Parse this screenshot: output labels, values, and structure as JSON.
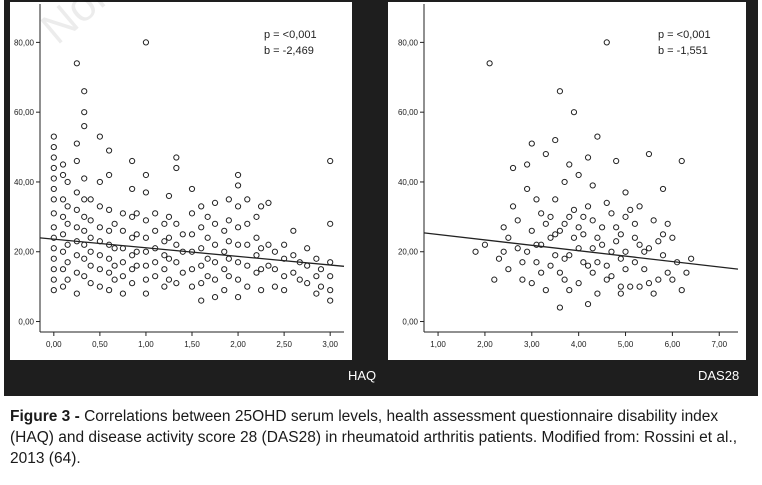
{
  "caption": {
    "label": "Figure 3 -",
    "text": "Correlations between 25OHD serum levels, health assessment questionnaire disability index (HAQ) and disease activity score 28 (DAS28) in rheumatoid arthritis patients. Modified from: Rossini et al., 2013 (64)."
  },
  "watermark": "Non",
  "colors": {
    "panel_bg": "#1e1e1e",
    "plot_bg": "#ffffff",
    "ink": "#222222"
  },
  "chart_data": [
    {
      "type": "scatter",
      "title": "",
      "xlabel": "HAQ",
      "ylabel": "",
      "xlim": [
        -0.15,
        3.15
      ],
      "ylim": [
        -3,
        91
      ],
      "xticks": [
        0.0,
        0.5,
        1.0,
        1.5,
        2.0,
        2.5,
        3.0
      ],
      "xtick_labels": [
        "0,00",
        "0,50",
        "1,00",
        "1,50",
        "2,00",
        "2,50",
        "3,00"
      ],
      "yticks": [
        0,
        20,
        40,
        60,
        80
      ],
      "ytick_labels": [
        "0,00",
        "20,00",
        "40,00",
        "60,00",
        "80,00"
      ],
      "annotation": {
        "p": "p = <0,001",
        "b": "b =  -2,469"
      },
      "regression": {
        "intercept": 23.6,
        "slope": -2.469
      },
      "points": [
        [
          0.0,
          53
        ],
        [
          0.0,
          50
        ],
        [
          0.0,
          47
        ],
        [
          0.0,
          44
        ],
        [
          0.0,
          41
        ],
        [
          0.0,
          38
        ],
        [
          0.0,
          35
        ],
        [
          0.0,
          31
        ],
        [
          0.0,
          27
        ],
        [
          0.0,
          24
        ],
        [
          0.0,
          21
        ],
        [
          0.0,
          18
        ],
        [
          0.0,
          15
        ],
        [
          0.0,
          12
        ],
        [
          0.0,
          9
        ],
        [
          0.1,
          45
        ],
        [
          0.1,
          42
        ],
        [
          0.1,
          35
        ],
        [
          0.1,
          30
        ],
        [
          0.1,
          25
        ],
        [
          0.1,
          20
        ],
        [
          0.1,
          15
        ],
        [
          0.1,
          10
        ],
        [
          0.15,
          40
        ],
        [
          0.15,
          33
        ],
        [
          0.15,
          28
        ],
        [
          0.15,
          22
        ],
        [
          0.15,
          17
        ],
        [
          0.15,
          12
        ],
        [
          0.25,
          74
        ],
        [
          0.25,
          51
        ],
        [
          0.25,
          46
        ],
        [
          0.25,
          37
        ],
        [
          0.25,
          32
        ],
        [
          0.25,
          27
        ],
        [
          0.25,
          23
        ],
        [
          0.25,
          19
        ],
        [
          0.25,
          14
        ],
        [
          0.25,
          8
        ],
        [
          0.33,
          66
        ],
        [
          0.33,
          60
        ],
        [
          0.33,
          56
        ],
        [
          0.33,
          41
        ],
        [
          0.33,
          35
        ],
        [
          0.33,
          30
        ],
        [
          0.33,
          26
        ],
        [
          0.33,
          22
        ],
        [
          0.33,
          18
        ],
        [
          0.33,
          13
        ],
        [
          0.4,
          35
        ],
        [
          0.4,
          29
        ],
        [
          0.4,
          24
        ],
        [
          0.4,
          20
        ],
        [
          0.4,
          16
        ],
        [
          0.4,
          11
        ],
        [
          0.5,
          53
        ],
        [
          0.5,
          40
        ],
        [
          0.5,
          33
        ],
        [
          0.5,
          27
        ],
        [
          0.5,
          23
        ],
        [
          0.5,
          19
        ],
        [
          0.5,
          15
        ],
        [
          0.5,
          10
        ],
        [
          0.6,
          49
        ],
        [
          0.6,
          42
        ],
        [
          0.6,
          32
        ],
        [
          0.6,
          26
        ],
        [
          0.6,
          22
        ],
        [
          0.6,
          18
        ],
        [
          0.6,
          14
        ],
        [
          0.6,
          9
        ],
        [
          0.66,
          28
        ],
        [
          0.66,
          21
        ],
        [
          0.66,
          16
        ],
        [
          0.66,
          12
        ],
        [
          0.75,
          31
        ],
        [
          0.75,
          26
        ],
        [
          0.75,
          21
        ],
        [
          0.75,
          17
        ],
        [
          0.75,
          13
        ],
        [
          0.75,
          8
        ],
        [
          0.85,
          46
        ],
        [
          0.85,
          38
        ],
        [
          0.85,
          30
        ],
        [
          0.85,
          24
        ],
        [
          0.85,
          19
        ],
        [
          0.85,
          15
        ],
        [
          0.85,
          11
        ],
        [
          0.9,
          31
        ],
        [
          0.9,
          25
        ],
        [
          0.9,
          20
        ],
        [
          0.9,
          16
        ],
        [
          1.0,
          80
        ],
        [
          1.0,
          42
        ],
        [
          1.0,
          37
        ],
        [
          1.0,
          29
        ],
        [
          1.0,
          24
        ],
        [
          1.0,
          20
        ],
        [
          1.0,
          16
        ],
        [
          1.0,
          12
        ],
        [
          1.0,
          8
        ],
        [
          1.1,
          31
        ],
        [
          1.1,
          26
        ],
        [
          1.1,
          21
        ],
        [
          1.1,
          17
        ],
        [
          1.1,
          13
        ],
        [
          1.2,
          28
        ],
        [
          1.2,
          23
        ],
        [
          1.2,
          19
        ],
        [
          1.2,
          15
        ],
        [
          1.2,
          10
        ],
        [
          1.25,
          36
        ],
        [
          1.25,
          30
        ],
        [
          1.25,
          24
        ],
        [
          1.25,
          18
        ],
        [
          1.25,
          12
        ],
        [
          1.33,
          47
        ],
        [
          1.33,
          44
        ],
        [
          1.33,
          28
        ],
        [
          1.33,
          22
        ],
        [
          1.33,
          17
        ],
        [
          1.33,
          11
        ],
        [
          1.4,
          25
        ],
        [
          1.4,
          20
        ],
        [
          1.4,
          14
        ],
        [
          1.5,
          38
        ],
        [
          1.5,
          31
        ],
        [
          1.5,
          25
        ],
        [
          1.5,
          20
        ],
        [
          1.5,
          15
        ],
        [
          1.5,
          10
        ],
        [
          1.6,
          33
        ],
        [
          1.6,
          27
        ],
        [
          1.6,
          21
        ],
        [
          1.6,
          16
        ],
        [
          1.6,
          11
        ],
        [
          1.6,
          6
        ],
        [
          1.67,
          30
        ],
        [
          1.67,
          24
        ],
        [
          1.67,
          18
        ],
        [
          1.67,
          13
        ],
        [
          1.75,
          34
        ],
        [
          1.75,
          28
        ],
        [
          1.75,
          22
        ],
        [
          1.75,
          17
        ],
        [
          1.75,
          12
        ],
        [
          1.75,
          7
        ],
        [
          1.85,
          26
        ],
        [
          1.85,
          20
        ],
        [
          1.85,
          15
        ],
        [
          1.85,
          9
        ],
        [
          1.9,
          35
        ],
        [
          1.9,
          29
        ],
        [
          1.9,
          23
        ],
        [
          1.9,
          18
        ],
        [
          1.9,
          13
        ],
        [
          2.0,
          42
        ],
        [
          2.0,
          39
        ],
        [
          2.0,
          33
        ],
        [
          2.0,
          27
        ],
        [
          2.0,
          22
        ],
        [
          2.0,
          17
        ],
        [
          2.0,
          12
        ],
        [
          2.0,
          7
        ],
        [
          2.1,
          35
        ],
        [
          2.1,
          28
        ],
        [
          2.1,
          22
        ],
        [
          2.1,
          16
        ],
        [
          2.1,
          10
        ],
        [
          2.2,
          30
        ],
        [
          2.2,
          24
        ],
        [
          2.2,
          19
        ],
        [
          2.2,
          14
        ],
        [
          2.25,
          33
        ],
        [
          2.25,
          21
        ],
        [
          2.25,
          15
        ],
        [
          2.25,
          9
        ],
        [
          2.33,
          34
        ],
        [
          2.33,
          22
        ],
        [
          2.33,
          16
        ],
        [
          2.4,
          20
        ],
        [
          2.4,
          15
        ],
        [
          2.4,
          10
        ],
        [
          2.5,
          22
        ],
        [
          2.5,
          18
        ],
        [
          2.5,
          13
        ],
        [
          2.5,
          9
        ],
        [
          2.6,
          26
        ],
        [
          2.6,
          19
        ],
        [
          2.6,
          14
        ],
        [
          2.67,
          17
        ],
        [
          2.67,
          12
        ],
        [
          2.75,
          21
        ],
        [
          2.75,
          16
        ],
        [
          2.75,
          11
        ],
        [
          2.85,
          18
        ],
        [
          2.85,
          13
        ],
        [
          2.85,
          8
        ],
        [
          2.9,
          15
        ],
        [
          2.9,
          10
        ],
        [
          3.0,
          46
        ],
        [
          3.0,
          28
        ],
        [
          3.0,
          17
        ],
        [
          3.0,
          13
        ],
        [
          3.0,
          9
        ],
        [
          3.0,
          6
        ]
      ]
    },
    {
      "type": "scatter",
      "title": "",
      "xlabel": "DAS28",
      "ylabel": "",
      "xlim": [
        0.7,
        7.4
      ],
      "ylim": [
        -3,
        91
      ],
      "xticks": [
        1,
        2,
        3,
        4,
        5,
        6,
        7
      ],
      "xtick_labels": [
        "1,00",
        "2,00",
        "3,00",
        "4,00",
        "5,00",
        "6,00",
        "7,00"
      ],
      "yticks": [
        0,
        20,
        40,
        60,
        80
      ],
      "ytick_labels": [
        "0,00",
        "20,00",
        "40,00",
        "60,00",
        "80,00"
      ],
      "annotation": {
        "p": "p = <0,001",
        "b": "b =  -1,551"
      },
      "regression": {
        "intercept": 26.5,
        "slope": -1.551
      },
      "points": [
        [
          2.1,
          74
        ],
        [
          4.6,
          80
        ],
        [
          3.6,
          66
        ],
        [
          3.9,
          60
        ],
        [
          3.5,
          52
        ],
        [
          4.4,
          53
        ],
        [
          3.0,
          51
        ],
        [
          3.3,
          48
        ],
        [
          3.8,
          45
        ],
        [
          4.2,
          47
        ],
        [
          2.6,
          44
        ],
        [
          2.9,
          45
        ],
        [
          4.3,
          39
        ],
        [
          5.0,
          37
        ],
        [
          6.2,
          46
        ],
        [
          5.5,
          48
        ],
        [
          4.8,
          46
        ],
        [
          5.8,
          38
        ],
        [
          4.0,
          42
        ],
        [
          3.7,
          40
        ],
        [
          1.8,
          20
        ],
        [
          2.2,
          12
        ],
        [
          5.9,
          28
        ],
        [
          6.3,
          14
        ],
        [
          5.3,
          10
        ],
        [
          4.9,
          8
        ],
        [
          4.2,
          5
        ],
        [
          3.6,
          4
        ],
        [
          6.0,
          24
        ],
        [
          6.4,
          18
        ],
        [
          2.0,
          22
        ],
        [
          2.3,
          18
        ],
        [
          2.4,
          27
        ],
        [
          2.5,
          15
        ],
        [
          2.6,
          33
        ],
        [
          2.7,
          21
        ],
        [
          2.8,
          12
        ],
        [
          2.9,
          38
        ],
        [
          3.0,
          26
        ],
        [
          3.1,
          17
        ],
        [
          3.2,
          31
        ],
        [
          3.3,
          9
        ],
        [
          3.4,
          24
        ],
        [
          3.5,
          35
        ],
        [
          3.6,
          14
        ],
        [
          3.7,
          28
        ],
        [
          3.8,
          19
        ],
        [
          3.9,
          32
        ],
        [
          4.0,
          11
        ],
        [
          4.1,
          25
        ],
        [
          4.2,
          16
        ],
        [
          4.3,
          29
        ],
        [
          4.4,
          8
        ],
        [
          4.5,
          22
        ],
        [
          4.6,
          34
        ],
        [
          4.7,
          13
        ],
        [
          4.8,
          27
        ],
        [
          4.9,
          18
        ],
        [
          5.0,
          30
        ],
        [
          5.1,
          10
        ],
        [
          5.2,
          24
        ],
        [
          5.3,
          33
        ],
        [
          5.4,
          15
        ],
        [
          5.5,
          21
        ],
        [
          5.6,
          29
        ],
        [
          5.7,
          12
        ],
        [
          5.8,
          19
        ],
        [
          5.9,
          14
        ],
        [
          6.1,
          17
        ],
        [
          6.2,
          9
        ],
        [
          2.4,
          20
        ],
        [
          2.7,
          29
        ],
        [
          3.0,
          11
        ],
        [
          3.2,
          22
        ],
        [
          3.4,
          16
        ],
        [
          3.6,
          26
        ],
        [
          3.8,
          9
        ],
        [
          4.0,
          21
        ],
        [
          4.2,
          33
        ],
        [
          4.4,
          17
        ],
        [
          4.6,
          12
        ],
        [
          4.8,
          23
        ],
        [
          5.0,
          15
        ],
        [
          5.2,
          28
        ],
        [
          5.4,
          20
        ],
        [
          5.6,
          8
        ],
        [
          5.8,
          25
        ],
        [
          6.0,
          12
        ],
        [
          3.1,
          35
        ],
        [
          3.3,
          28
        ],
        [
          3.5,
          19
        ],
        [
          3.7,
          12
        ],
        [
          3.9,
          24
        ],
        [
          4.1,
          30
        ],
        [
          4.3,
          14
        ],
        [
          4.5,
          27
        ],
        [
          4.7,
          20
        ],
        [
          4.9,
          10
        ],
        [
          5.1,
          32
        ],
        [
          5.3,
          22
        ],
        [
          2.5,
          24
        ],
        [
          2.8,
          17
        ],
        [
          3.1,
          22
        ],
        [
          3.4,
          30
        ],
        [
          3.7,
          18
        ],
        [
          4.0,
          27
        ],
        [
          4.3,
          21
        ],
        [
          4.6,
          16
        ],
        [
          4.9,
          25
        ],
        [
          5.2,
          17
        ],
        [
          5.5,
          11
        ],
        [
          5.7,
          23
        ],
        [
          2.9,
          20
        ],
        [
          3.2,
          14
        ],
        [
          3.5,
          25
        ],
        [
          3.8,
          30
        ],
        [
          4.1,
          17
        ],
        [
          4.4,
          24
        ],
        [
          4.7,
          31
        ],
        [
          5.0,
          20
        ]
      ]
    }
  ]
}
